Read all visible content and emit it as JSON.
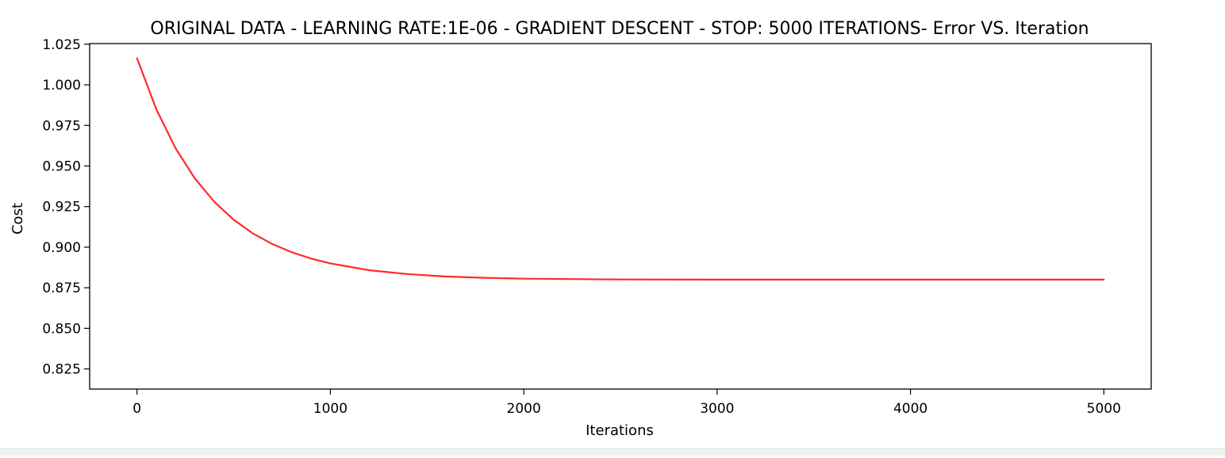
{
  "colors": {
    "line": "#ff2a2a",
    "axis": "#000000",
    "background": "#ffffff"
  },
  "chart_data": {
    "type": "line",
    "title": "ORIGINAL DATA - LEARNING RATE:1E-06 - GRADIENT DESCENT - STOP: 5000 ITERATIONS- Error VS. Iteration",
    "xlabel": "Iterations",
    "ylabel": "Cost",
    "xlim": [
      -245,
      5245
    ],
    "ylim": [
      0.8126,
      1.0254
    ],
    "x_ticks": [
      0,
      1000,
      2000,
      3000,
      4000,
      5000
    ],
    "y_ticks": [
      0.825,
      0.85,
      0.875,
      0.9,
      0.925,
      0.95,
      0.975,
      1.0,
      1.025
    ],
    "x_tick_labels": [
      "0",
      "1000",
      "2000",
      "3000",
      "4000",
      "5000"
    ],
    "y_tick_labels": [
      "0.825",
      "0.850",
      "0.875",
      "0.900",
      "0.925",
      "0.950",
      "0.975",
      "1.000",
      "1.025"
    ],
    "grid": false,
    "legend": "none",
    "series": [
      {
        "x": [
          0,
          100,
          200,
          300,
          400,
          500,
          600,
          700,
          800,
          900,
          1000,
          1200,
          1400,
          1600,
          1800,
          2000,
          2500,
          3000,
          3500,
          4000,
          4500,
          5000
        ],
        "values": [
          1.0163,
          0.9849,
          0.9608,
          0.9422,
          0.9279,
          0.9169,
          0.9084,
          0.9019,
          0.8969,
          0.893,
          0.89,
          0.8858,
          0.8834,
          0.8819,
          0.8811,
          0.8806,
          0.8801,
          0.88,
          0.88,
          0.88,
          0.88,
          0.88
        ],
        "color": "#ff2a2a"
      }
    ]
  }
}
